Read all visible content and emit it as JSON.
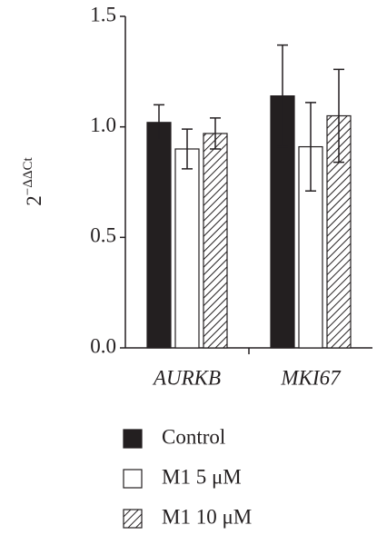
{
  "chart_data": {
    "type": "bar",
    "y_label_base": "2",
    "y_label_exponent": "−ΔΔCt",
    "categories": [
      "AURKB",
      "MKI67"
    ],
    "series": [
      {
        "name": "Control",
        "color": "#231f20",
        "values": [
          1.02,
          1.14
        ],
        "errors": [
          0.08,
          0.23
        ]
      },
      {
        "name": "M1 5 μM",
        "color": "#ffffff",
        "values": [
          0.9,
          0.91
        ],
        "errors": [
          0.09,
          0.2
        ]
      },
      {
        "name": "M1 10 μM",
        "color": "#ffffff",
        "hatch": true,
        "values": [
          0.97,
          1.05
        ],
        "errors": [
          0.07,
          0.21
        ]
      }
    ],
    "ylim": [
      0,
      1.5
    ],
    "yticks": [
      {
        "value": 0,
        "label": "0.0"
      },
      0.5,
      {
        "value": 1,
        "label": "1.0"
      },
      1.5
    ]
  }
}
